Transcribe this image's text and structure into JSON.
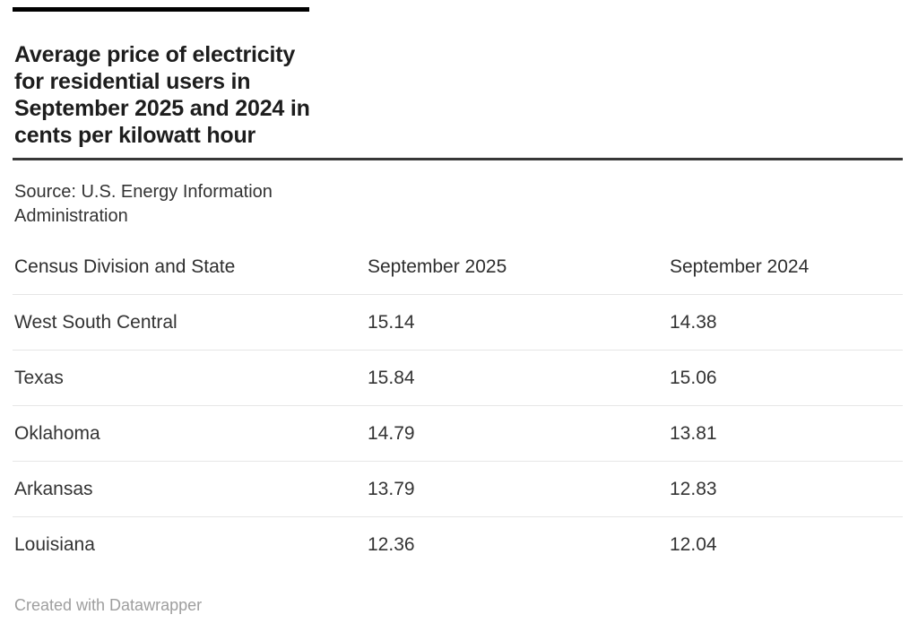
{
  "colors": {
    "accent_bar": "#000000",
    "title_text": "#1d1d1d",
    "body_text": "#333333",
    "rule_dark": "#383838",
    "rule_light": "#e6e6e6",
    "footer_text": "#9e9e9e"
  },
  "header": {
    "title_lines": [
      "Average price of electricity",
      "for residential users in",
      "September 2025 and 2024 in",
      "cents per kilowatt hour"
    ],
    "source_lines": [
      "Source: U.S. Energy Information",
      "Administration"
    ]
  },
  "table": {
    "columns": [
      "Census Division and State",
      "September 2025",
      "September 2024"
    ],
    "rows": [
      {
        "label": "West South Central",
        "v2025": "15.14",
        "v2024": "14.38"
      },
      {
        "label": "Texas",
        "v2025": "15.84",
        "v2024": "15.06"
      },
      {
        "label": "Oklahoma",
        "v2025": "14.79",
        "v2024": "13.81"
      },
      {
        "label": "Arkansas",
        "v2025": "13.79",
        "v2024": "12.83"
      },
      {
        "label": "Louisiana",
        "v2025": "12.36",
        "v2024": "12.04"
      }
    ]
  },
  "footer": {
    "attribution": "Created with Datawrapper"
  },
  "chart_data": {
    "type": "table",
    "title": "Average price of electricity for residential users in September 2025 and 2024 in cents per kilowatt hour",
    "source": "Source: U.S. Energy Information Administration",
    "columns": [
      "Census Division and State",
      "September 2025",
      "September 2024"
    ],
    "rows": [
      [
        "West South Central",
        15.14,
        14.38
      ],
      [
        "Texas",
        15.84,
        15.06
      ],
      [
        "Oklahoma",
        14.79,
        13.81
      ],
      [
        "Arkansas",
        13.79,
        12.83
      ],
      [
        "Louisiana",
        12.36,
        12.04
      ]
    ],
    "units": "cents per kilowatt hour",
    "footer": "Created with Datawrapper"
  }
}
